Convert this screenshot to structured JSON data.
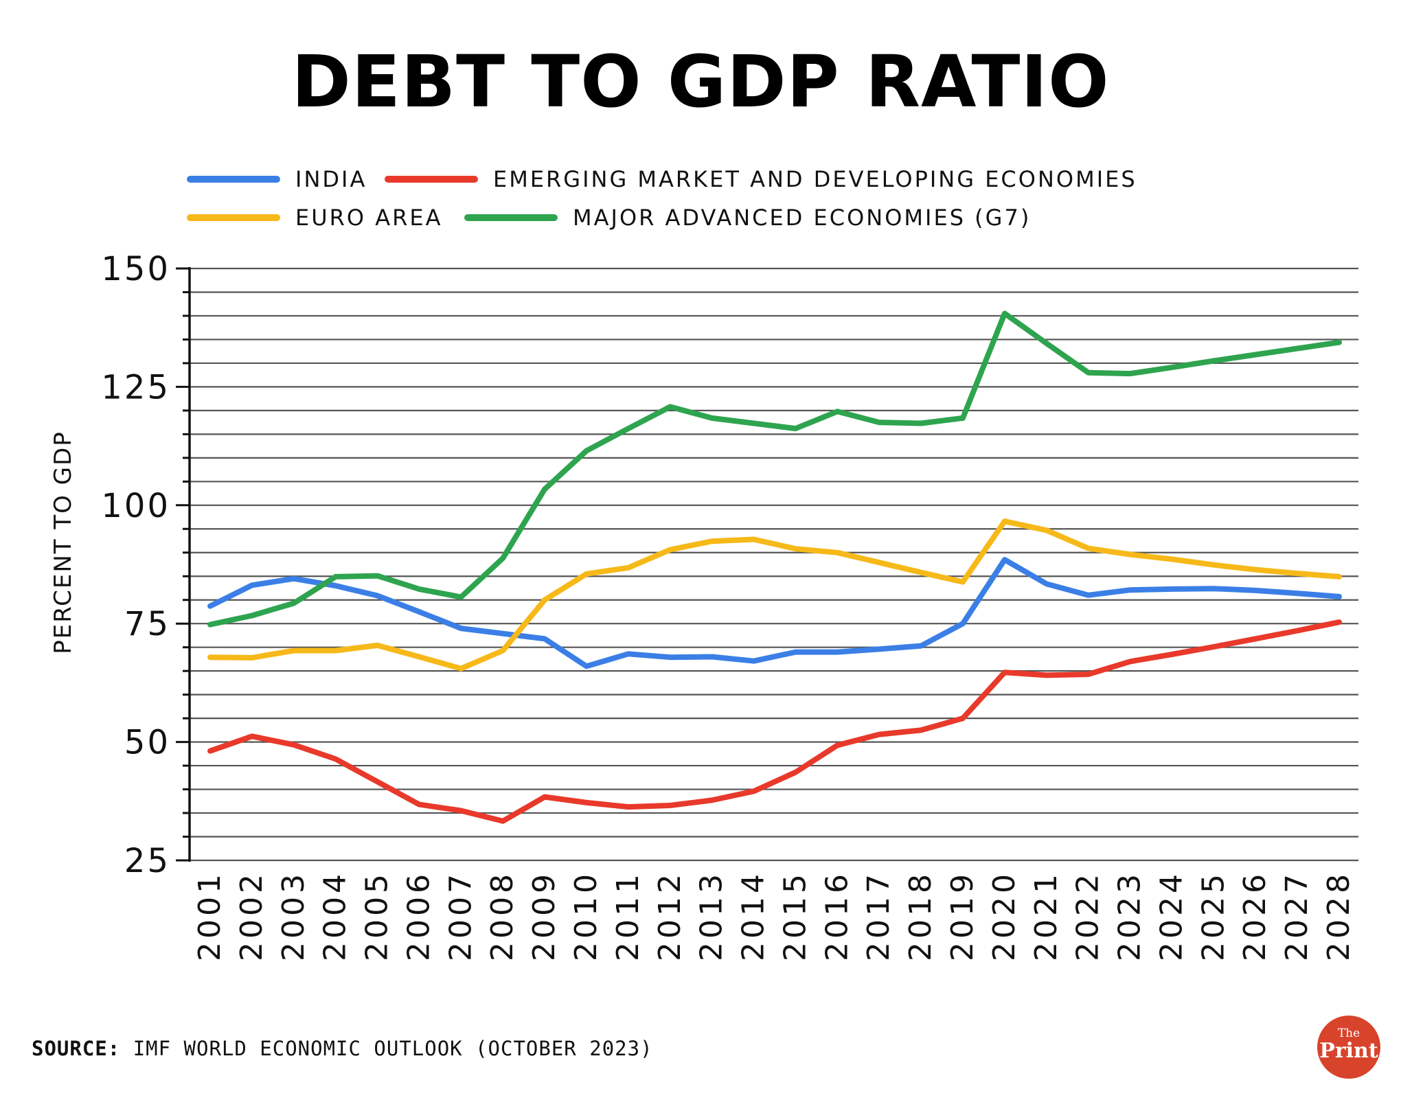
{
  "chart_data": {
    "type": "line",
    "title": "DEBT TO GDP RATIO",
    "ylabel": "PERCENT TO GDP",
    "xlabel": "",
    "ylim": [
      25,
      150
    ],
    "yticks": [
      25,
      50,
      75,
      100,
      125,
      150
    ],
    "grid": true,
    "legend_position": "top-left",
    "categories": [
      "2001",
      "2002",
      "2003",
      "2004",
      "2005",
      "2006",
      "2007",
      "2008",
      "2009",
      "2010",
      "2011",
      "2012",
      "2013",
      "2014",
      "2015",
      "2016",
      "2017",
      "2018",
      "2019",
      "2020",
      "2021",
      "2022",
      "2023",
      "2024",
      "2025",
      "2026",
      "2027",
      "2028"
    ],
    "series": [
      {
        "name": "INDIA",
        "color": "#3b7fe6",
        "values": [
          78.7,
          83.1,
          84.5,
          83.0,
          80.9,
          77.5,
          74.0,
          72.9,
          71.8,
          66.0,
          68.6,
          67.9,
          68.0,
          67.1,
          69.0,
          69.0,
          69.6,
          70.3,
          75.0,
          88.5,
          83.4,
          81.0,
          82.1,
          82.3,
          82.4,
          82.0,
          81.4,
          80.7
        ]
      },
      {
        "name": "EMERGING MARKET AND DEVELOPING ECONOMIES",
        "color": "#e8392b",
        "values": [
          48.1,
          51.2,
          49.4,
          46.4,
          41.6,
          36.8,
          35.5,
          33.3,
          38.4,
          37.2,
          36.3,
          36.6,
          37.7,
          39.6,
          43.6,
          49.3,
          51.6,
          52.5,
          55.0,
          64.7,
          64.1,
          64.3,
          67.0,
          68.5,
          70.1,
          71.8,
          73.5,
          75.3
        ]
      },
      {
        "name": "EURO AREA",
        "color": "#f6b919",
        "values": [
          67.9,
          67.8,
          69.3,
          69.3,
          70.4,
          68.0,
          65.5,
          69.3,
          80.0,
          85.5,
          86.8,
          90.6,
          92.4,
          92.8,
          90.8,
          90.0,
          87.9,
          85.8,
          83.8,
          96.6,
          94.7,
          90.9,
          89.6,
          88.6,
          87.4,
          86.4,
          85.6,
          84.9
        ]
      },
      {
        "name": "MAJOR ADVANCED ECONOMIES (G7)",
        "color": "#2ea44f",
        "values": [
          74.8,
          76.7,
          79.3,
          84.9,
          85.1,
          82.3,
          80.6,
          88.8,
          103.4,
          111.5,
          116.2,
          120.8,
          118.4,
          117.3,
          116.2,
          119.8,
          117.5,
          117.3,
          118.4,
          140.5,
          134.2,
          128.0,
          127.8,
          129.1,
          130.5,
          131.8,
          133.1,
          134.4
        ]
      }
    ]
  },
  "source": {
    "label": "SOURCE:",
    "text": "IMF WORLD ECONOMIC OUTLOOK (OCTOBER 2023)"
  },
  "logo": {
    "the": "The",
    "print": "Print"
  }
}
